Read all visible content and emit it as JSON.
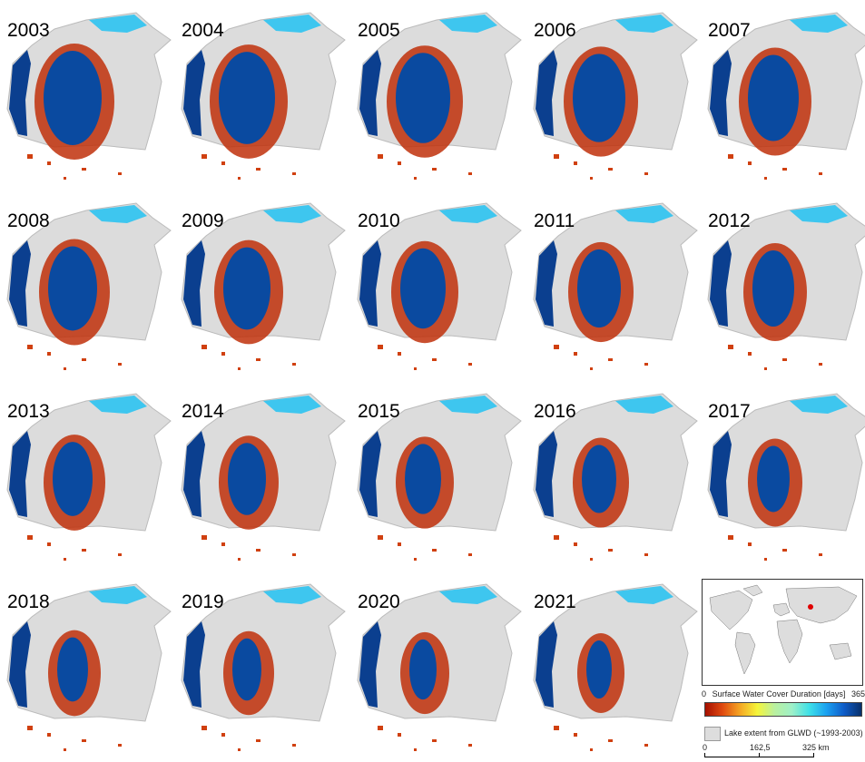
{
  "panels": [
    {
      "year": "2003"
    },
    {
      "year": "2004"
    },
    {
      "year": "2005"
    },
    {
      "year": "2006"
    },
    {
      "year": "2007"
    },
    {
      "year": "2008"
    },
    {
      "year": "2009"
    },
    {
      "year": "2010"
    },
    {
      "year": "2011"
    },
    {
      "year": "2012"
    },
    {
      "year": "2013"
    },
    {
      "year": "2014"
    },
    {
      "year": "2015"
    },
    {
      "year": "2016"
    },
    {
      "year": "2017"
    },
    {
      "year": "2018"
    },
    {
      "year": "2019"
    },
    {
      "year": "2020"
    },
    {
      "year": "2021"
    }
  ],
  "legend": {
    "colorbar_min": "0",
    "colorbar_title": "Surface Water Cover Duration [days]",
    "colorbar_max": "365",
    "colorbar_colors": [
      "#a50f00",
      "#e04a10",
      "#f5a623",
      "#f5f53a",
      "#b9f0a0",
      "#3ee0e8",
      "#1aa0f0",
      "#08306b"
    ],
    "lake_extent_label": "Lake extent from GLWD (~1993-2003)",
    "lake_extent_color": "#dddddd",
    "scale_labels": [
      "0",
      "162,5",
      "325 km"
    ],
    "inset_marker_color": "#e00000"
  }
}
